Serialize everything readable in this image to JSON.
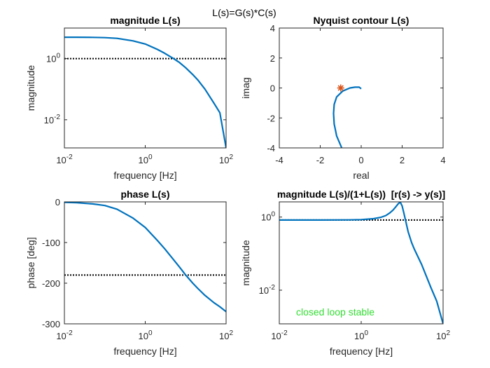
{
  "figure": {
    "suptitle": "L(s)=G(s)*C(s)",
    "colors": {
      "curve": "#0072BD",
      "reference": "#000000",
      "critical_point": "#D95319",
      "annotation": "#33DD33"
    }
  },
  "chart_data": [
    {
      "id": "mag",
      "type": "line",
      "title": "magnitude L(s)",
      "xlabel": "frequency [Hz]",
      "ylabel": "magnitude",
      "xscale": "log",
      "yscale": "log",
      "xlim": [
        0.01,
        100
      ],
      "ylim": [
        0.0012,
        10
      ],
      "xticks": [
        {
          "base": "10",
          "exp": "-2",
          "v": 0.01
        },
        {
          "base": "10",
          "exp": "0",
          "v": 1
        },
        {
          "base": "10",
          "exp": "2",
          "v": 100
        }
      ],
      "yticks": [
        {
          "base": "10",
          "exp": "-2",
          "v": 0.01
        },
        {
          "base": "10",
          "exp": "0",
          "v": 1
        }
      ],
      "x": [
        0.01,
        0.02,
        0.05,
        0.1,
        0.2,
        0.5,
        1,
        2,
        3,
        5,
        7,
        10,
        15,
        20,
        30,
        50,
        70,
        100
      ],
      "y": [
        5.0,
        5.0,
        4.95,
        4.85,
        4.6,
        3.8,
        3.0,
        2.0,
        1.5,
        1.0,
        0.75,
        0.5,
        0.3,
        0.2,
        0.1,
        0.035,
        0.017,
        0.0012
      ],
      "reference_y": 1,
      "grid": false
    },
    {
      "id": "nyq",
      "type": "line",
      "title": "Nyquist contour L(s)",
      "xlabel": "real",
      "ylabel": "imag",
      "xlim": [
        -4,
        4
      ],
      "ylim": [
        -4,
        4
      ],
      "xticks": [
        {
          "label": "-4",
          "v": -4
        },
        {
          "label": "-2",
          "v": -2
        },
        {
          "label": "0",
          "v": 0
        },
        {
          "label": "2",
          "v": 2
        },
        {
          "label": "4",
          "v": 4
        }
      ],
      "yticks": [
        {
          "label": "-4",
          "v": -4
        },
        {
          "label": "-2",
          "v": -2
        },
        {
          "label": "0",
          "v": 0
        },
        {
          "label": "2",
          "v": 2
        },
        {
          "label": "4",
          "v": 4
        }
      ],
      "x": [
        -0.95,
        -1.2,
        -1.32,
        -1.35,
        -1.32,
        -1.2,
        -0.9,
        -0.55,
        -0.3,
        -0.1,
        0.0
      ],
      "y": [
        -4.0,
        -3.2,
        -2.4,
        -1.7,
        -1.1,
        -0.6,
        -0.2,
        0.0,
        0.05,
        0.05,
        -0.05
      ],
      "critical_point": {
        "x": -1,
        "y": 0
      },
      "grid": false
    },
    {
      "id": "phase",
      "type": "line",
      "title": "phase L(s)",
      "xlabel": "frequency [Hz]",
      "ylabel": "phase [deg]",
      "xscale": "log",
      "xlim": [
        0.01,
        100
      ],
      "ylim": [
        -300,
        0
      ],
      "xticks": [
        {
          "base": "10",
          "exp": "-2",
          "v": 0.01
        },
        {
          "base": "10",
          "exp": "0",
          "v": 1
        },
        {
          "base": "10",
          "exp": "2",
          "v": 100
        }
      ],
      "yticks": [
        {
          "label": "0",
          "v": 0
        },
        {
          "label": "-100",
          "v": -100
        },
        {
          "label": "-200",
          "v": -200
        },
        {
          "label": "-300",
          "v": -300
        }
      ],
      "x": [
        0.01,
        0.02,
        0.05,
        0.1,
        0.2,
        0.5,
        1,
        2,
        3,
        5,
        7,
        10,
        15,
        20,
        30,
        50,
        70,
        100
      ],
      "y": [
        -1,
        -2,
        -5,
        -9,
        -18,
        -40,
        -63,
        -95,
        -115,
        -142,
        -160,
        -180,
        -200,
        -213,
        -230,
        -248,
        -258,
        -270
      ],
      "reference_y": -180,
      "grid": false
    },
    {
      "id": "cl",
      "type": "line",
      "title": "magnitude L(s)/(1+L(s))  [r(s) -> y(s)]",
      "xlabel": "frequency [Hz]",
      "ylabel": "magnitude",
      "xscale": "log",
      "yscale": "log",
      "xlim": [
        0.01,
        100
      ],
      "ylim": [
        0.0012,
        2.6
      ],
      "xticks": [
        {
          "base": "10",
          "exp": "-2",
          "v": 0.01
        },
        {
          "base": "10",
          "exp": "0",
          "v": 1
        },
        {
          "base": "10",
          "exp": "2",
          "v": 100
        }
      ],
      "yticks": [
        {
          "base": "10",
          "exp": "-2",
          "v": 0.01
        },
        {
          "base": "10",
          "exp": "0",
          "v": 1
        }
      ],
      "x": [
        0.01,
        0.1,
        0.5,
        1,
        2,
        3,
        4,
        5,
        6,
        7,
        8,
        9,
        10,
        11,
        12,
        14,
        17,
        20,
        30,
        50,
        70,
        100
      ],
      "y": [
        0.83,
        0.83,
        0.835,
        0.85,
        0.9,
        0.98,
        1.1,
        1.3,
        1.55,
        1.9,
        2.3,
        2.55,
        2.0,
        1.3,
        0.85,
        0.4,
        0.2,
        0.13,
        0.05,
        0.012,
        0.005,
        0.0012
      ],
      "reference_y": 0.83,
      "annotation": "closed loop stable",
      "grid": false
    }
  ]
}
